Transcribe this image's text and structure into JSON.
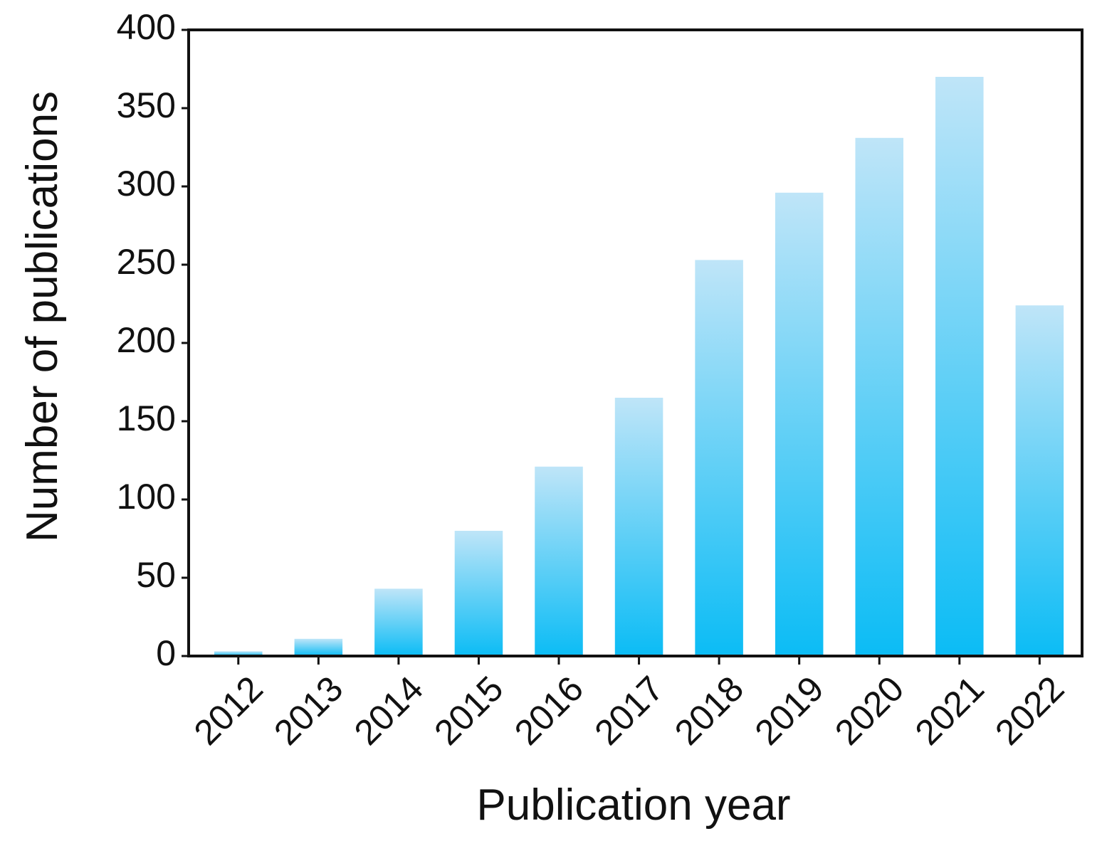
{
  "chart_data": {
    "type": "bar",
    "xlabel": "Publication year",
    "ylabel": "Number of publications",
    "categories": [
      "2012",
      "2013",
      "2014",
      "2015",
      "2016",
      "2017",
      "2018",
      "2019",
      "2020",
      "2021",
      "2022"
    ],
    "values": [
      3,
      11,
      43,
      80,
      121,
      165,
      253,
      296,
      331,
      370,
      224
    ],
    "color": "#0bbcf5",
    "ylim": [
      0,
      400
    ],
    "yticks": [
      0,
      50,
      100,
      150,
      200,
      250,
      300,
      350,
      400
    ],
    "grid": false
  }
}
